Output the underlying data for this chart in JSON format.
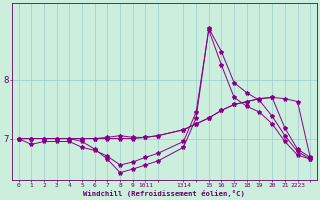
{
  "xlabel": "Windchill (Refroidissement éolien,°C)",
  "background_color": "#cceedd",
  "line_color": "#880088",
  "grid_color": "#99cccc",
  "text_color": "#660066",
  "ylim": [
    6.3,
    9.3
  ],
  "xlim": [
    -0.5,
    23.5
  ],
  "lines": [
    {
      "x": [
        0,
        1,
        2,
        3,
        4,
        5,
        6,
        7,
        8,
        9,
        10,
        11,
        13,
        14,
        15,
        16,
        17,
        18,
        19,
        20,
        21,
        22,
        23
      ],
      "y": [
        7.0,
        6.9,
        6.95,
        6.95,
        6.95,
        6.85,
        6.8,
        6.7,
        6.55,
        6.6,
        6.68,
        6.75,
        6.95,
        7.45,
        8.85,
        8.25,
        7.7,
        7.55,
        7.45,
        7.25,
        6.95,
        6.72,
        6.65
      ]
    },
    {
      "x": [
        0,
        1,
        2,
        3,
        4,
        5,
        6,
        7,
        8,
        9,
        10,
        11,
        13,
        14,
        15,
        16,
        17,
        18,
        19,
        20,
        21,
        22,
        23
      ],
      "y": [
        7.0,
        7.0,
        7.0,
        7.0,
        7.0,
        7.0,
        7.0,
        7.0,
        7.0,
        7.0,
        7.02,
        7.05,
        7.15,
        7.25,
        7.35,
        7.48,
        7.58,
        7.63,
        7.68,
        7.7,
        7.68,
        7.63,
        6.68
      ]
    },
    {
      "x": [
        0,
        1,
        2,
        3,
        4,
        5,
        6,
        7,
        8,
        9,
        10,
        11,
        13,
        14,
        15,
        16,
        17,
        18,
        19,
        20,
        21,
        22,
        23
      ],
      "y": [
        7.0,
        7.0,
        7.0,
        7.0,
        7.0,
        7.0,
        7.0,
        7.02,
        7.05,
        7.02,
        7.02,
        7.05,
        7.15,
        7.25,
        7.35,
        7.48,
        7.58,
        7.63,
        7.68,
        7.7,
        7.18,
        6.82,
        6.68
      ]
    },
    {
      "x": [
        0,
        1,
        2,
        3,
        4,
        5,
        6,
        7,
        8,
        9,
        10,
        11,
        13,
        14,
        15,
        16,
        17,
        18,
        19,
        20,
        21,
        22,
        23
      ],
      "y": [
        7.0,
        7.0,
        7.0,
        7.0,
        7.0,
        6.95,
        6.82,
        6.65,
        6.42,
        6.48,
        6.55,
        6.62,
        6.85,
        7.35,
        8.88,
        8.48,
        7.95,
        7.78,
        7.65,
        7.38,
        7.05,
        6.78,
        6.65
      ]
    }
  ],
  "yticks": [
    7.0,
    8.0
  ],
  "ytick_labels": [
    "7",
    "8"
  ],
  "xtick_positions": [
    0,
    1,
    2,
    3,
    4,
    5,
    6,
    7,
    8,
    9,
    10,
    11,
    13,
    14,
    15,
    16,
    17,
    18,
    19,
    20,
    21,
    22,
    23
  ],
  "xtick_labels": [
    "0",
    "1",
    "2",
    "3",
    "4",
    "5",
    "6",
    "7",
    "8",
    "9",
    "1011",
    "",
    "1314",
    "",
    "15",
    "16",
    "17",
    "18",
    "19",
    "20",
    "21",
    "2223",
    ""
  ],
  "marker": "*",
  "marker_size": 3.0,
  "linewidth": 0.7
}
